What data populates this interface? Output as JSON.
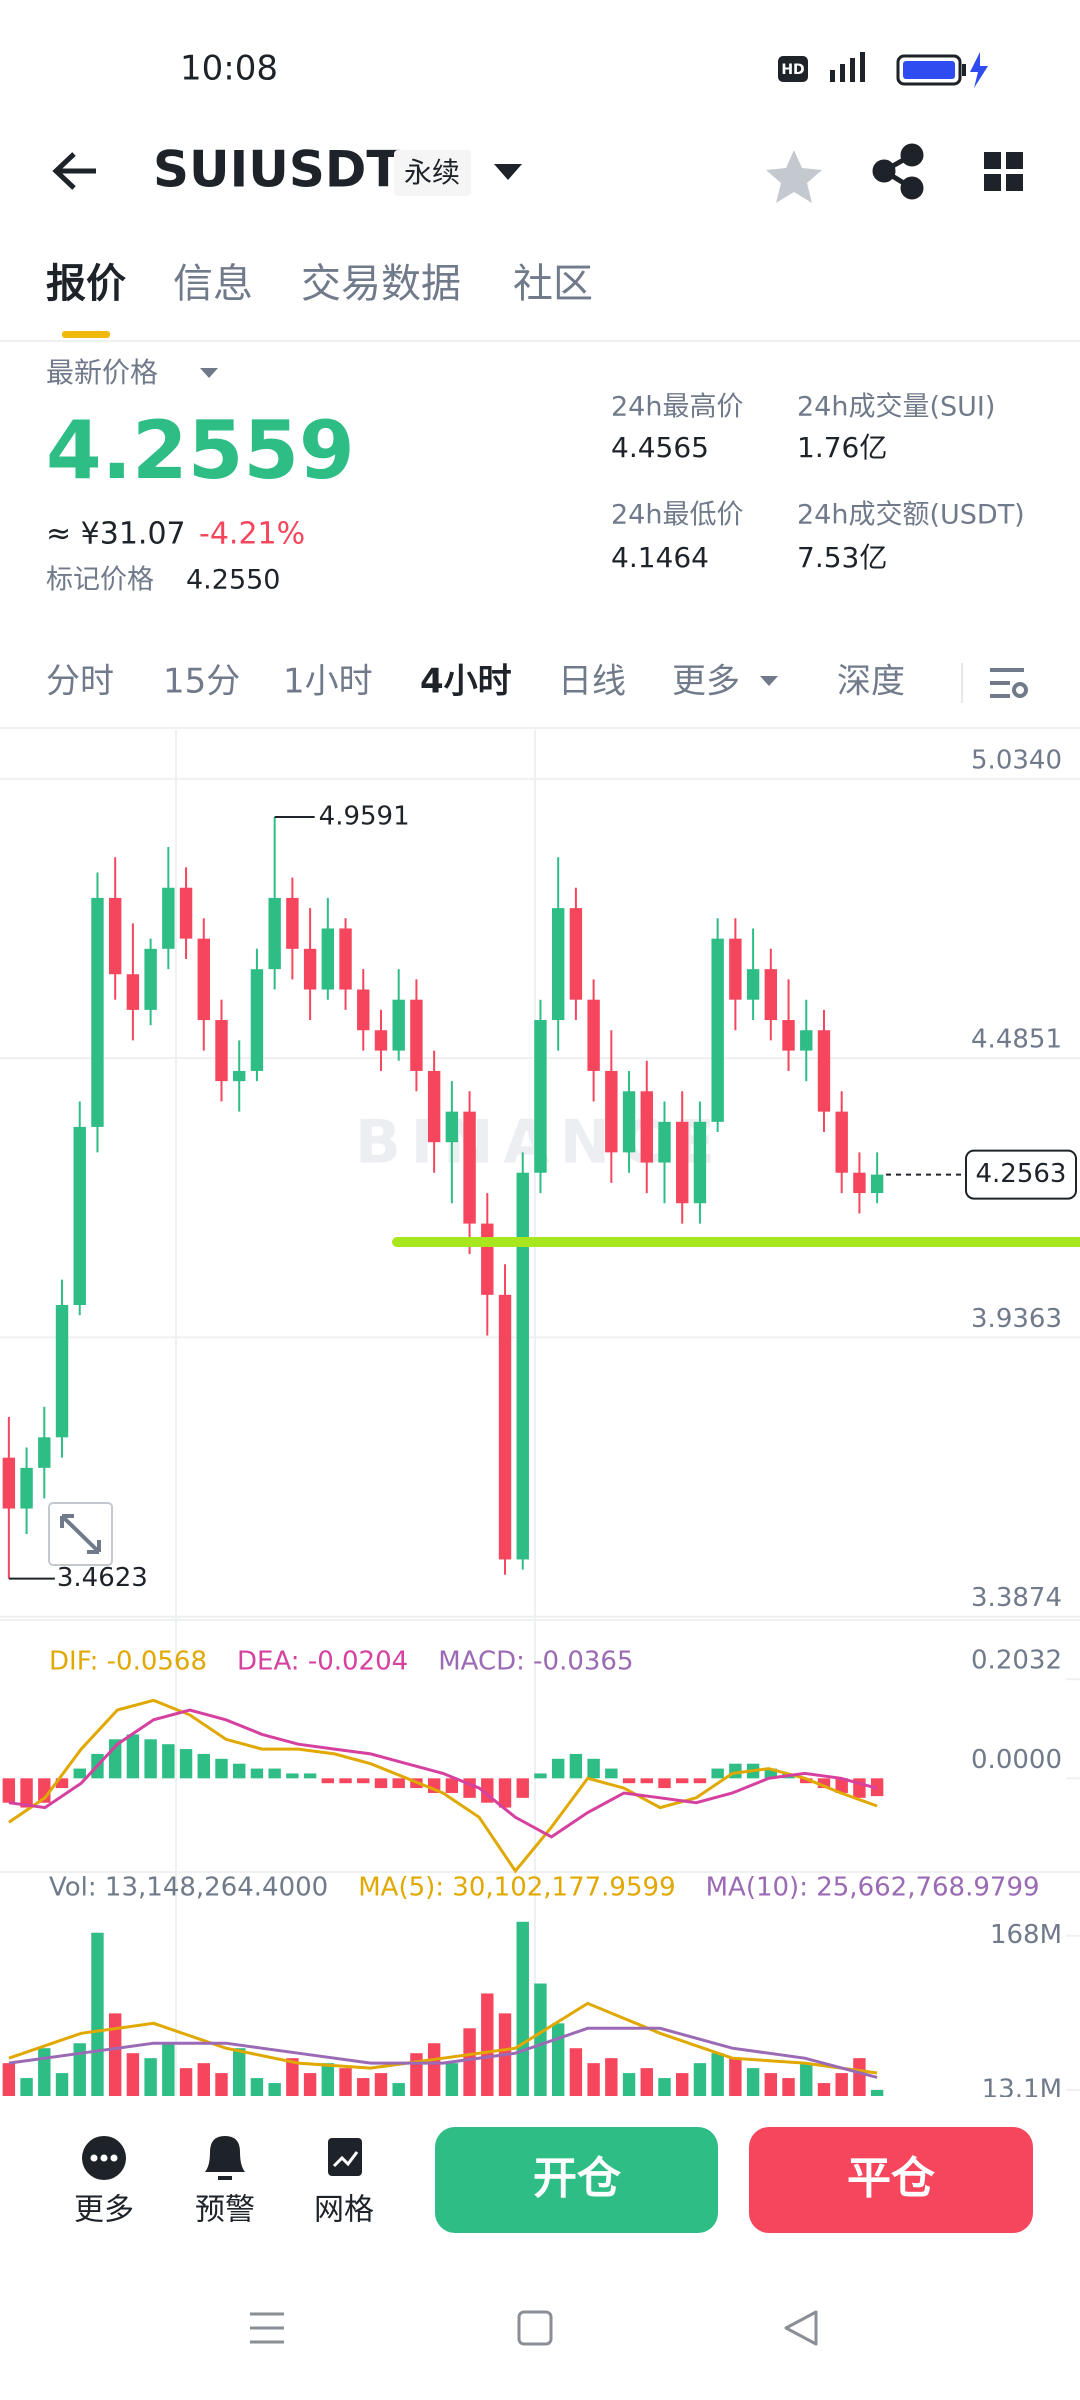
{
  "status_bar": {
    "time": "10:08"
  },
  "header": {
    "symbol": "SUIUSDT",
    "tag": "永续"
  },
  "tabs": [
    "报价",
    "信息",
    "交易数据",
    "社区"
  ],
  "summary": {
    "last_price_label": "最新价格",
    "last_price": "4.2559",
    "cny": "≈ ¥31.07",
    "change": "-4.21%",
    "mark_label": "标记价格",
    "mark_price": "4.2550",
    "stats": [
      {
        "label": "24h最高价",
        "value": "4.4565"
      },
      {
        "label": "24h成交量(SUI)",
        "value": "1.76亿"
      },
      {
        "label": "24h最低价",
        "value": "4.1464"
      },
      {
        "label": "24h成交额(USDT)",
        "value": "7.53亿"
      }
    ]
  },
  "intervals": [
    "分时",
    "15分",
    "1小时",
    "4小时",
    "日线",
    "更多",
    "深度"
  ],
  "chart_data": [
    {
      "type": "candlestick",
      "watermark": "BINANCE",
      "up_color": "#2ebd85",
      "down_color": "#f6465d",
      "grid": true,
      "ylim": [
        3.381,
        5.13
      ],
      "yticks": [
        {
          "value": 5.034,
          "label": "5.0340"
        },
        4.4851,
        3.9363,
        3.3874
      ],
      "candles": [
        [
          3.7,
          3.78,
          3.4623,
          3.6
        ],
        [
          3.6,
          3.72,
          3.55,
          3.68
        ],
        [
          3.68,
          3.8,
          3.62,
          3.74
        ],
        [
          3.74,
          4.05,
          3.7,
          4.0
        ],
        [
          4.0,
          4.4,
          3.98,
          4.35
        ],
        [
          4.35,
          4.85,
          4.3,
          4.8
        ],
        [
          4.8,
          4.88,
          4.6,
          4.65
        ],
        [
          4.65,
          4.75,
          4.52,
          4.58
        ],
        [
          4.58,
          4.72,
          4.55,
          4.7
        ],
        [
          4.7,
          4.9,
          4.66,
          4.82
        ],
        [
          4.82,
          4.86,
          4.68,
          4.72
        ],
        [
          4.72,
          4.76,
          4.5,
          4.56
        ],
        [
          4.56,
          4.6,
          4.4,
          4.44
        ],
        [
          4.44,
          4.52,
          4.38,
          4.46
        ],
        [
          4.46,
          4.7,
          4.44,
          4.66
        ],
        [
          4.66,
          4.9591,
          4.62,
          4.8
        ],
        [
          4.8,
          4.84,
          4.64,
          4.7
        ],
        [
          4.7,
          4.78,
          4.56,
          4.62
        ],
        [
          4.62,
          4.8,
          4.6,
          4.74
        ],
        [
          4.74,
          4.76,
          4.58,
          4.62
        ],
        [
          4.62,
          4.66,
          4.5,
          4.54
        ],
        [
          4.54,
          4.58,
          4.46,
          4.5
        ],
        [
          4.5,
          4.66,
          4.48,
          4.6
        ],
        [
          4.6,
          4.64,
          4.42,
          4.46
        ],
        [
          4.46,
          4.5,
          4.26,
          4.32
        ],
        [
          4.32,
          4.44,
          4.2,
          4.38
        ],
        [
          4.38,
          4.42,
          4.1,
          4.16
        ],
        [
          4.16,
          4.22,
          3.94,
          4.02
        ],
        [
          4.02,
          4.08,
          3.47,
          3.5
        ],
        [
          3.5,
          4.3,
          3.48,
          4.26
        ],
        [
          4.26,
          4.6,
          4.22,
          4.56
        ],
        [
          4.56,
          4.88,
          4.5,
          4.78
        ],
        [
          4.78,
          4.82,
          4.56,
          4.6
        ],
        [
          4.6,
          4.64,
          4.4,
          4.46
        ],
        [
          4.46,
          4.54,
          4.24,
          4.3
        ],
        [
          4.3,
          4.46,
          4.26,
          4.42
        ],
        [
          4.42,
          4.48,
          4.22,
          4.28
        ],
        [
          4.28,
          4.4,
          4.2,
          4.36
        ],
        [
          4.36,
          4.42,
          4.16,
          4.2
        ],
        [
          4.2,
          4.4,
          4.16,
          4.36
        ],
        [
          4.36,
          4.76,
          4.34,
          4.72
        ],
        [
          4.72,
          4.76,
          4.54,
          4.6
        ],
        [
          4.6,
          4.74,
          4.56,
          4.66
        ],
        [
          4.66,
          4.7,
          4.52,
          4.56
        ],
        [
          4.56,
          4.64,
          4.46,
          4.5
        ],
        [
          4.5,
          4.6,
          4.44,
          4.54
        ],
        [
          4.54,
          4.58,
          4.34,
          4.38
        ],
        [
          4.38,
          4.42,
          4.22,
          4.26
        ],
        [
          4.26,
          4.3,
          4.18,
          4.22
        ],
        [
          4.22,
          4.3,
          4.2,
          4.2563
        ]
      ]
    },
    {
      "type": "macd",
      "up_color": "#2ebd85",
      "down_color": "#f6465d",
      "ylim": [
        -0.19,
        0.3
      ],
      "yticks": [
        0.2032,
        {
          "value": 0,
          "label": "0.0000"
        }
      ],
      "series": [
        {
          "name": "DIF: -0.0568",
          "color": "#e0a800",
          "values": [
            -0.09,
            -0.04,
            0.06,
            0.14,
            0.16,
            0.13,
            0.08,
            0.06,
            0.06,
            0.05,
            0.03,
            0.0,
            -0.03,
            -0.08,
            -0.19,
            -0.1,
            0.0,
            -0.02,
            -0.06,
            -0.04,
            0.01,
            0.02,
            0.0,
            -0.03,
            -0.0568
          ]
        },
        {
          "name": "DEA: -0.0204",
          "color": "#d6409f",
          "values": [
            -0.05,
            -0.06,
            -0.01,
            0.07,
            0.12,
            0.14,
            0.12,
            0.09,
            0.07,
            0.06,
            0.05,
            0.03,
            0.01,
            -0.02,
            -0.08,
            -0.12,
            -0.07,
            -0.03,
            -0.04,
            -0.05,
            -0.03,
            0.0,
            0.01,
            0.0,
            -0.0204
          ]
        }
      ],
      "histogram": {
        "name": "MACD: -0.0365",
        "color": "#9b6ab5",
        "values": [
          -0.05,
          -0.06,
          -0.05,
          -0.02,
          0.02,
          0.05,
          0.08,
          0.09,
          0.08,
          0.07,
          0.06,
          0.05,
          0.04,
          0.03,
          0.02,
          0.02,
          0.01,
          0.01,
          -0.01,
          -0.01,
          -0.01,
          -0.02,
          -0.02,
          -0.02,
          -0.03,
          -0.03,
          -0.04,
          -0.05,
          -0.06,
          -0.04,
          0.01,
          0.04,
          0.05,
          0.04,
          0.02,
          -0.01,
          -0.01,
          -0.02,
          -0.01,
          -0.01,
          0.02,
          0.03,
          0.03,
          0.02,
          0.01,
          -0.01,
          -0.02,
          -0.03,
          -0.04,
          -0.0365
        ]
      }
    },
    {
      "type": "volume",
      "up_color": "#2ebd85",
      "down_color": "#f6465d",
      "ylim": [
        7000000,
        228000000
      ],
      "yticks": [
        {
          "value": 168000000,
          "label": "168M"
        },
        {
          "value": 13100000,
          "label": "13.1M"
        }
      ],
      "series": [
        {
          "name": "Vol: 13,148,264.4000",
          "color": "#707a8a",
          "values": [
            40000000,
            25000000,
            55000000,
            30000000,
            60000000,
            171000000,
            90000000,
            50000000,
            45000000,
            60000000,
            35000000,
            40000000,
            30000000,
            55000000,
            25000000,
            20000000,
            45000000,
            30000000,
            40000000,
            35000000,
            25000000,
            30000000,
            20000000,
            50000000,
            60000000,
            40000000,
            75000000,
            110000000,
            90000000,
            182000000,
            120000000,
            80000000,
            55000000,
            40000000,
            45000000,
            30000000,
            35000000,
            25000000,
            30000000,
            40000000,
            50000000,
            45000000,
            35000000,
            30000000,
            25000000,
            40000000,
            20000000,
            30000000,
            45000000,
            13148264.4
          ]
        },
        {
          "name": "MA(5): 30,102,177.9599",
          "color": "#e0a800",
          "values": [
            45000000,
            70000000,
            80000000,
            55000000,
            40000000,
            35000000,
            45000000,
            55000000,
            100000000,
            70000000,
            45000000,
            40000000,
            30102177.9599
          ]
        },
        {
          "name": "MA(10): 25,662,768.9799",
          "color": "#9b6ab5",
          "values": [
            40000000,
            50000000,
            60000000,
            60000000,
            50000000,
            40000000,
            40000000,
            50000000,
            75000000,
            75000000,
            55000000,
            45000000,
            25662768.9799
          ]
        }
      ]
    }
  ],
  "toolbar": [
    "更多",
    "预警",
    "网格"
  ],
  "buttons": [
    "开仓",
    "平仓"
  ]
}
